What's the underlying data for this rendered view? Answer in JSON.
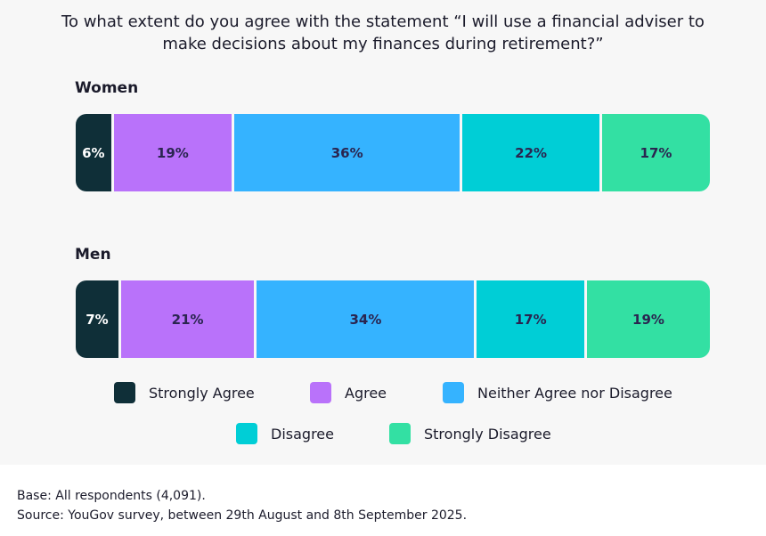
{
  "chart_data": {
    "type": "bar",
    "orientation": "horizontal-stacked-100",
    "title": "To what extent do you agree with the statement “I will use a financial adviser to make decisions about my finances during retirement?”",
    "categories": [
      "Women",
      "Men"
    ],
    "series": [
      {
        "name": "Strongly Agree",
        "color": "#0f2f38",
        "values": [
          6,
          7
        ],
        "labels": [
          "6%",
          "7%"
        ]
      },
      {
        "name": "Agree",
        "color": "#b972fa",
        "values": [
          19,
          21
        ],
        "labels": [
          "19%",
          "21%"
        ]
      },
      {
        "name": "Neither Agree nor Disagree",
        "color": "#35b3ff",
        "values": [
          36,
          34
        ],
        "labels": [
          "36%",
          "34%"
        ]
      },
      {
        "name": "Disagree",
        "color": "#00ced6",
        "values": [
          22,
          17
        ],
        "labels": [
          "22%",
          "17%"
        ]
      },
      {
        "name": "Strongly Disagree",
        "color": "#33e0a3",
        "values": [
          17,
          19
        ],
        "labels": [
          "17%",
          "19%"
        ]
      }
    ],
    "xlim": [
      0,
      100
    ],
    "legend": "bottom"
  },
  "footer": {
    "base": "Base: All respondents (4,091).",
    "source": "Source: YouGov survey, between 29th August and 8th September 2025."
  }
}
